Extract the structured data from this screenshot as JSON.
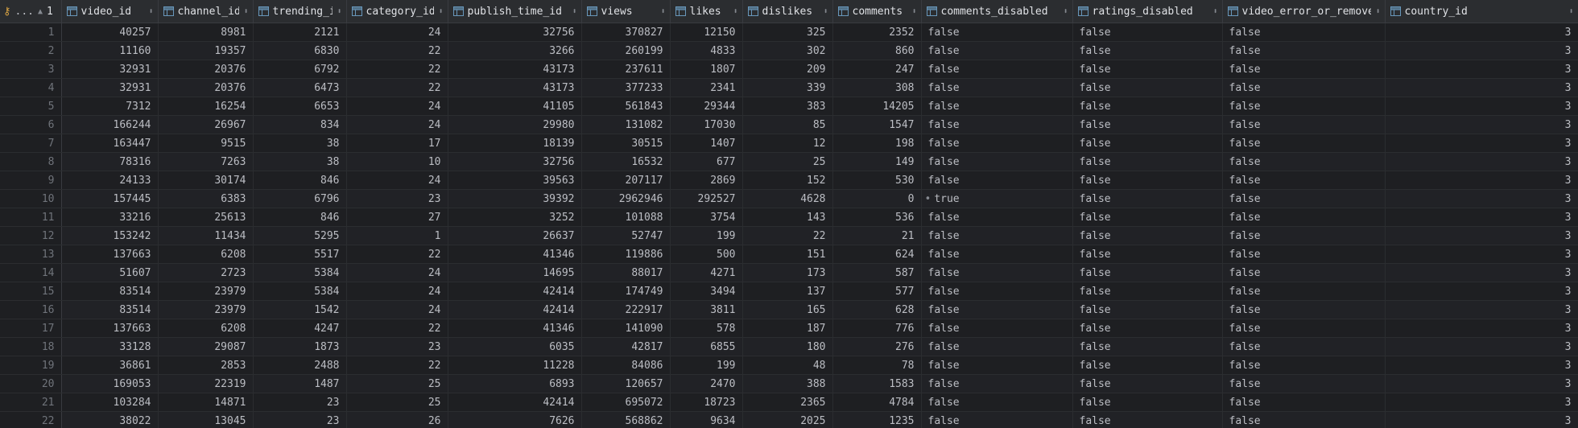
{
  "header": {
    "row_header": {
      "ellipsis": "...",
      "sort_indicator": "▲",
      "sort_order": "1"
    },
    "columns": [
      {
        "key": "video_id",
        "label": "video_id",
        "align": "num"
      },
      {
        "key": "channel_id",
        "label": "channel_id",
        "align": "num"
      },
      {
        "key": "trending_id",
        "label": "trending_id",
        "align": "num"
      },
      {
        "key": "category_id",
        "label": "category_id",
        "align": "num"
      },
      {
        "key": "publish_time_id",
        "label": "publish_time_id",
        "align": "num"
      },
      {
        "key": "views",
        "label": "views",
        "align": "num"
      },
      {
        "key": "likes",
        "label": "likes",
        "align": "num"
      },
      {
        "key": "dislikes",
        "label": "dislikes",
        "align": "num"
      },
      {
        "key": "comments",
        "label": "comments",
        "align": "num"
      },
      {
        "key": "comments_disabled",
        "label": "comments_disabled",
        "align": "txt"
      },
      {
        "key": "ratings_disabled",
        "label": "ratings_disabled",
        "align": "txt"
      },
      {
        "key": "video_error_or_removed",
        "label": "video_error_or_removed",
        "align": "txt"
      },
      {
        "key": "country_id",
        "label": "country_id",
        "align": "num"
      }
    ]
  },
  "rows": [
    {
      "n": "1",
      "cells": [
        "40257",
        "8981",
        "2121",
        "24",
        "32756",
        "370827",
        "12150",
        "325",
        "2352",
        "false",
        "false",
        "false",
        "3"
      ]
    },
    {
      "n": "2",
      "cells": [
        "11160",
        "19357",
        "6830",
        "22",
        "3266",
        "260199",
        "4833",
        "302",
        "860",
        "false",
        "false",
        "false",
        "3"
      ]
    },
    {
      "n": "3",
      "cells": [
        "32931",
        "20376",
        "6792",
        "22",
        "43173",
        "237611",
        "1807",
        "209",
        "247",
        "false",
        "false",
        "false",
        "3"
      ]
    },
    {
      "n": "4",
      "cells": [
        "32931",
        "20376",
        "6473",
        "22",
        "43173",
        "377233",
        "2341",
        "339",
        "308",
        "false",
        "false",
        "false",
        "3"
      ]
    },
    {
      "n": "5",
      "cells": [
        "7312",
        "16254",
        "6653",
        "24",
        "41105",
        "561843",
        "29344",
        "383",
        "14205",
        "false",
        "false",
        "false",
        "3"
      ]
    },
    {
      "n": "6",
      "cells": [
        "166244",
        "26967",
        "834",
        "24",
        "29980",
        "131082",
        "17030",
        "85",
        "1547",
        "false",
        "false",
        "false",
        "3"
      ]
    },
    {
      "n": "7",
      "cells": [
        "163447",
        "9515",
        "38",
        "17",
        "18139",
        "30515",
        "1407",
        "12",
        "198",
        "false",
        "false",
        "false",
        "3"
      ]
    },
    {
      "n": "8",
      "cells": [
        "78316",
        "7263",
        "38",
        "10",
        "32756",
        "16532",
        "677",
        "25",
        "149",
        "false",
        "false",
        "false",
        "3"
      ]
    },
    {
      "n": "9",
      "cells": [
        "24133",
        "30174",
        "846",
        "24",
        "39563",
        "207117",
        "2869",
        "152",
        "530",
        "false",
        "false",
        "false",
        "3"
      ]
    },
    {
      "n": "10",
      "cells": [
        "157445",
        "6383",
        "6796",
        "23",
        "39392",
        "2962946",
        "292527",
        "4628",
        "0",
        "true",
        "false",
        "false",
        "3"
      ]
    },
    {
      "n": "11",
      "cells": [
        "33216",
        "25613",
        "846",
        "27",
        "3252",
        "101088",
        "3754",
        "143",
        "536",
        "false",
        "false",
        "false",
        "3"
      ]
    },
    {
      "n": "12",
      "cells": [
        "153242",
        "11434",
        "5295",
        "1",
        "26637",
        "52747",
        "199",
        "22",
        "21",
        "false",
        "false",
        "false",
        "3"
      ]
    },
    {
      "n": "13",
      "cells": [
        "137663",
        "6208",
        "5517",
        "22",
        "41346",
        "119886",
        "500",
        "151",
        "624",
        "false",
        "false",
        "false",
        "3"
      ]
    },
    {
      "n": "14",
      "cells": [
        "51607",
        "2723",
        "5384",
        "24",
        "14695",
        "88017",
        "4271",
        "173",
        "587",
        "false",
        "false",
        "false",
        "3"
      ]
    },
    {
      "n": "15",
      "cells": [
        "83514",
        "23979",
        "5384",
        "24",
        "42414",
        "174749",
        "3494",
        "137",
        "577",
        "false",
        "false",
        "false",
        "3"
      ]
    },
    {
      "n": "16",
      "cells": [
        "83514",
        "23979",
        "1542",
        "24",
        "42414",
        "222917",
        "3811",
        "165",
        "628",
        "false",
        "false",
        "false",
        "3"
      ]
    },
    {
      "n": "17",
      "cells": [
        "137663",
        "6208",
        "4247",
        "22",
        "41346",
        "141090",
        "578",
        "187",
        "776",
        "false",
        "false",
        "false",
        "3"
      ]
    },
    {
      "n": "18",
      "cells": [
        "33128",
        "29087",
        "1873",
        "23",
        "6035",
        "42817",
        "6855",
        "180",
        "276",
        "false",
        "false",
        "false",
        "3"
      ]
    },
    {
      "n": "19",
      "cells": [
        "36861",
        "2853",
        "2488",
        "22",
        "11228",
        "84086",
        "199",
        "48",
        "78",
        "false",
        "false",
        "false",
        "3"
      ]
    },
    {
      "n": "20",
      "cells": [
        "169053",
        "22319",
        "1487",
        "25",
        "6893",
        "120657",
        "2470",
        "388",
        "1583",
        "false",
        "false",
        "false",
        "3"
      ]
    },
    {
      "n": "21",
      "cells": [
        "103284",
        "14871",
        "23",
        "25",
        "42414",
        "695072",
        "18723",
        "2365",
        "4784",
        "false",
        "false",
        "false",
        "3"
      ]
    },
    {
      "n": "22",
      "cells": [
        "38022",
        "13045",
        "23",
        "26",
        "7626",
        "568862",
        "9634",
        "2025",
        "1235",
        "false",
        "false",
        "false",
        "3"
      ]
    }
  ],
  "icons": {
    "key_column": "key-icon",
    "column_type": "table-column-icon",
    "sort": "sort-arrows-icon"
  },
  "colors": {
    "background": "#1e1f22",
    "header_background": "#2b2d30",
    "text": "#bcbec4",
    "column_icon": "#6897bb",
    "key_icon": "#d9a343"
  }
}
